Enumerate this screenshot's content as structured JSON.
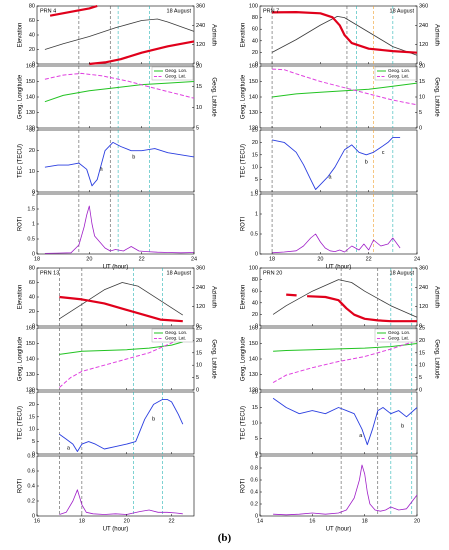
{
  "figure_label": "(b)",
  "colors": {
    "elevation": "#3a3a3a",
    "azimuth": "#e0001b",
    "lon": "#22c322",
    "lat": "#e040e0",
    "tec": "#2b3fe0",
    "roti": "#a020c8",
    "vline_gray": "#555555",
    "vline_cyan": "#2ab5b5",
    "vline_orange": "#f0a030"
  },
  "chart_data": [
    {
      "type": "line",
      "prn": "PRN 4",
      "date": "18 August",
      "x_ticks": [
        18,
        20,
        22,
        24
      ],
      "xlim": [
        18,
        24
      ],
      "xlabel": "UT (hour)",
      "vlines": [
        {
          "x": 19.6,
          "c": "gray"
        },
        {
          "x": 20.8,
          "c": "gray"
        },
        {
          "x": 21.1,
          "c": "cyan"
        },
        {
          "x": 22.3,
          "c": "cyan"
        }
      ],
      "top": {
        "ylabel_left": "Elevation",
        "ylabel_right": "Azimuth",
        "ylim_left": [
          0,
          80
        ],
        "yticks_left": [
          0,
          20,
          40,
          60,
          80
        ],
        "ylim_right": [
          0,
          360
        ],
        "yticks_right": [
          0,
          120,
          240,
          360
        ],
        "elevation": {
          "x": [
            18.3,
            19,
            20,
            21,
            22,
            22.6,
            23,
            24
          ],
          "y": [
            20,
            28,
            38,
            50,
            60,
            62,
            58,
            45
          ]
        },
        "azimuth_segments": [
          {
            "x": [
              18.5,
              19.5,
              20,
              20.3
            ],
            "y": [
              300,
              330,
              345,
              360
            ]
          },
          {
            "x": [
              20,
              20.6,
              21.2,
              22,
              23,
              24
            ],
            "y": [
              0,
              10,
              30,
              70,
              110,
              140
            ]
          }
        ]
      },
      "geo": {
        "ylabel_left": "Geog. Longitude",
        "ylabel_right": "Geog. Latitude",
        "ylim_left": [
          120,
          160
        ],
        "yticks_left": [
          120,
          130,
          140,
          150,
          160
        ],
        "ylim_right": [
          5,
          20
        ],
        "yticks_right": [
          5,
          10,
          15,
          20
        ],
        "legend": [
          "Geog. Lon.",
          "Geog. Lat."
        ],
        "lon": {
          "x": [
            18.3,
            19,
            20,
            21,
            22,
            23,
            24
          ],
          "y": [
            137,
            141,
            144,
            146,
            148,
            149,
            150
          ]
        },
        "lat": {
          "x": [
            18.3,
            19,
            19.7,
            20.5,
            21.5,
            22.5,
            23.5,
            24
          ],
          "y": [
            16.8,
            17.8,
            18.2,
            17.6,
            16.3,
            14.6,
            13,
            12.2
          ]
        }
      },
      "tec": {
        "ylabel": "TEC (TECU)",
        "ylim": [
          0,
          30
        ],
        "yticks": [
          0,
          10,
          20,
          30
        ],
        "x": [
          18.3,
          18.8,
          19.2,
          19.6,
          19.9,
          20.1,
          20.3,
          20.6,
          20.9,
          21.2,
          21.6,
          22.0,
          22.5,
          23.0,
          23.5,
          24.0
        ],
        "y": [
          12,
          13,
          13,
          14,
          11,
          3,
          6,
          20,
          24,
          22,
          20,
          20,
          21,
          19,
          18,
          17
        ],
        "labels": [
          {
            "t": "a",
            "x": 20.45,
            "y": 11
          },
          {
            "t": "b",
            "x": 21.7,
            "y": 17
          }
        ]
      },
      "roti": {
        "ylabel": "ROTI",
        "ylim": [
          0,
          2
        ],
        "yticks": [
          0,
          0.5,
          1,
          1.5,
          2
        ],
        "x": [
          18.3,
          18.8,
          19.3,
          19.6,
          19.8,
          19.9,
          20.0,
          20.1,
          20.2,
          20.4,
          20.6,
          20.8,
          21.0,
          21.3,
          21.6,
          21.9,
          22.2,
          22.6,
          23.0,
          23.5,
          24.0
        ],
        "y": [
          0.02,
          0.03,
          0.04,
          0.3,
          0.9,
          1.3,
          1.6,
          1.0,
          0.6,
          0.4,
          0.2,
          0.1,
          0.15,
          0.1,
          0.25,
          0.1,
          0.08,
          0.06,
          0.05,
          0.04,
          0.05
        ]
      }
    },
    {
      "type": "line",
      "prn": "PRN 7",
      "date": "18 August",
      "x_ticks": [
        18,
        20,
        22,
        24
      ],
      "xlim": [
        17.5,
        24
      ],
      "xlabel": "UT (hour)",
      "vlines": [
        {
          "x": 18.0,
          "c": "gray"
        },
        {
          "x": 21.1,
          "c": "gray"
        },
        {
          "x": 21.5,
          "c": "cyan"
        },
        {
          "x": 22.2,
          "c": "orange"
        },
        {
          "x": 23.0,
          "c": "cyan"
        }
      ],
      "top": {
        "ylabel_left": "Elevation",
        "ylabel_right": "Azimuth",
        "ylim_left": [
          0,
          100
        ],
        "yticks_left": [
          0,
          20,
          40,
          60,
          80,
          100
        ],
        "ylim_right": [
          0,
          360
        ],
        "yticks_right": [
          0,
          120,
          240,
          360
        ],
        "elevation": {
          "x": [
            18,
            19,
            20,
            20.7,
            21,
            22,
            23,
            24
          ],
          "y": [
            20,
            42,
            67,
            82,
            80,
            55,
            30,
            15
          ]
        },
        "azimuth_segments": [
          {
            "x": [
              18,
              19,
              20,
              20.5,
              20.8,
              21,
              21.3,
              22,
              23,
              24
            ],
            "y": [
              320,
              322,
              315,
              290,
              240,
              180,
              130,
              95,
              80,
              70
            ]
          }
        ]
      },
      "geo": {
        "ylabel_left": "Geog. Longitude",
        "ylabel_right": "Geog. Latitude",
        "ylim_left": [
          120,
          160
        ],
        "yticks_left": [
          120,
          130,
          140,
          150,
          160
        ],
        "ylim_right": [
          0,
          20
        ],
        "yticks_right": [
          0,
          5,
          10,
          15,
          20
        ],
        "legend": [
          "Geog. Lon.",
          "Geog. Lat."
        ],
        "lon": {
          "x": [
            18,
            19,
            20,
            21,
            22,
            23,
            24
          ],
          "y": [
            140,
            142,
            143,
            144,
            145,
            147,
            149
          ]
        },
        "lat": {
          "x": [
            18,
            18.5,
            19,
            20,
            21,
            22,
            23,
            24
          ],
          "y": [
            19,
            18.8,
            17.5,
            15,
            13,
            11,
            9,
            7.5
          ]
        }
      },
      "tec": {
        "ylabel": "TEC (TECU)",
        "ylim": [
          0,
          25
        ],
        "yticks": [
          0,
          5,
          10,
          15,
          20,
          25
        ],
        "x": [
          18,
          18.5,
          19,
          19.3,
          19.6,
          19.8,
          20.0,
          20.3,
          20.6,
          21.0,
          21.3,
          21.6,
          21.9,
          22.2,
          22.5,
          22.8,
          23.0,
          23.3
        ],
        "y": [
          21,
          20,
          16,
          11,
          5,
          1,
          3,
          6,
          10,
          17,
          19,
          16,
          15,
          16,
          18,
          20,
          22,
          22
        ],
        "labels": [
          {
            "t": "a",
            "x": 20.4,
            "y": 6
          },
          {
            "t": "b",
            "x": 21.9,
            "y": 12
          },
          {
            "t": "c",
            "x": 22.6,
            "y": 16
          }
        ]
      },
      "roti": {
        "ylabel": "ROTI",
        "ylim": [
          0,
          1.5
        ],
        "yticks": [
          0,
          0.5,
          1,
          1.5
        ],
        "x": [
          18,
          18.5,
          19,
          19.3,
          19.6,
          19.8,
          20.0,
          20.2,
          20.4,
          20.6,
          20.8,
          21.0,
          21.3,
          21.6,
          21.8,
          22.0,
          22.2,
          22.5,
          22.8,
          23.0,
          23.3
        ],
        "y": [
          0.03,
          0.05,
          0.08,
          0.2,
          0.4,
          0.5,
          0.3,
          0.15,
          0.08,
          0.06,
          0.1,
          0.05,
          0.2,
          0.1,
          0.25,
          0.1,
          0.35,
          0.2,
          0.25,
          0.4,
          0.15
        ]
      }
    },
    {
      "type": "line",
      "prn": "PRN 13",
      "date": "18 August",
      "x_ticks": [
        16,
        18,
        20,
        22
      ],
      "xlim": [
        16,
        23
      ],
      "xlabel": "UT (hour)",
      "vlines": [
        {
          "x": 17.0,
          "c": "gray"
        },
        {
          "x": 18.0,
          "c": "gray"
        },
        {
          "x": 20.3,
          "c": "cyan"
        },
        {
          "x": 21.6,
          "c": "cyan"
        }
      ],
      "top": {
        "ylabel_left": "Elevation",
        "ylabel_right": "Azimuth",
        "ylim_left": [
          0,
          80
        ],
        "yticks_left": [
          0,
          20,
          40,
          60,
          80
        ],
        "ylim_right": [
          0,
          360
        ],
        "yticks_right": [
          0,
          120,
          240,
          360
        ],
        "elevation": {
          "x": [
            17,
            18,
            19,
            19.8,
            20.5,
            21.5,
            22.5
          ],
          "y": [
            10,
            30,
            50,
            60,
            55,
            35,
            15
          ]
        },
        "azimuth_segments": [
          {
            "x": [
              17,
              18,
              19,
              20,
              21,
              21.5,
              22.5
            ],
            "y": [
              180,
              165,
              140,
              100,
              60,
              40,
              30
            ]
          }
        ]
      },
      "geo": {
        "ylabel_left": "Geog. Longitude",
        "ylabel_right": "Geog. Latitude",
        "ylim_left": [
          120,
          160
        ],
        "yticks_left": [
          120,
          130,
          140,
          150,
          160
        ],
        "ylim_right": [
          0,
          25
        ],
        "yticks_right": [
          0,
          5,
          10,
          15,
          20,
          25
        ],
        "legend": [
          "Geog. Lon.",
          "Geog. Lat."
        ],
        "lon": {
          "x": [
            17,
            18,
            19,
            20,
            21,
            22,
            22.5
          ],
          "y": [
            143,
            145,
            145.5,
            146,
            147,
            149,
            151
          ]
        },
        "lat": {
          "x": [
            17,
            17.5,
            18,
            19,
            20,
            21,
            22,
            22.5
          ],
          "y": [
            1,
            5,
            7.5,
            10,
            12.5,
            15,
            19,
            22
          ]
        }
      },
      "tec": {
        "ylabel": "TEC (TECU)",
        "ylim": [
          0,
          25
        ],
        "yticks": [
          0,
          5,
          10,
          15,
          20,
          25
        ],
        "x": [
          17,
          17.3,
          17.6,
          17.8,
          18.0,
          18.3,
          18.6,
          19.0,
          19.5,
          20.0,
          20.4,
          20.8,
          21.2,
          21.6,
          21.8,
          22.0,
          22.3,
          22.5
        ],
        "y": [
          8,
          6,
          4,
          1,
          4,
          5,
          4,
          2,
          3,
          4,
          5,
          14,
          20,
          22,
          22,
          21,
          16,
          12
        ],
        "labels": [
          {
            "t": "a",
            "x": 17.4,
            "y": 2.5
          },
          {
            "t": "b",
            "x": 21.2,
            "y": 14
          }
        ]
      },
      "roti": {
        "ylabel": "ROTI",
        "ylim": [
          0,
          0.8
        ],
        "yticks": [
          0,
          0.2,
          0.4,
          0.6,
          0.8
        ],
        "x": [
          17,
          17.3,
          17.6,
          17.8,
          18.0,
          18.2,
          18.5,
          19.0,
          19.5,
          20.0,
          20.3,
          20.6,
          21.0,
          21.4,
          21.8,
          22.2,
          22.5
        ],
        "y": [
          0.02,
          0.05,
          0.2,
          0.35,
          0.15,
          0.05,
          0.03,
          0.02,
          0.03,
          0.02,
          0.04,
          0.06,
          0.08,
          0.05,
          0.05,
          0.04,
          0.03
        ]
      }
    },
    {
      "type": "line",
      "prn": "PRN 20",
      "date": "18 August",
      "x_ticks": [
        14,
        16,
        18,
        20
      ],
      "xlim": [
        14,
        20
      ],
      "xlabel": "UT (hour)",
      "vlines": [
        {
          "x": 17.1,
          "c": "gray"
        },
        {
          "x": 18.5,
          "c": "gray"
        },
        {
          "x": 19.0,
          "c": "cyan"
        },
        {
          "x": 19.8,
          "c": "cyan"
        }
      ],
      "top": {
        "ylabel_left": "Elevation",
        "ylabel_right": "Azimuth",
        "ylim_left": [
          0,
          100
        ],
        "yticks_left": [
          0,
          20,
          40,
          60,
          80,
          100
        ],
        "ylim_right": [
          0,
          360
        ],
        "yticks_right": [
          0,
          120,
          240,
          360
        ],
        "elevation": {
          "x": [
            14.5,
            15,
            16,
            17,
            17.5,
            18,
            19,
            20
          ],
          "y": [
            20,
            35,
            60,
            80,
            75,
            60,
            35,
            15
          ]
        },
        "azimuth_segments": [
          {
            "x": [
              15,
              15.4
            ],
            "y": [
              195,
              190
            ]
          },
          {
            "x": [
              15.8,
              16.5,
              17,
              17.3,
              17.6,
              18,
              18.5,
              19,
              20
            ],
            "y": [
              185,
              180,
              160,
              110,
              70,
              45,
              35,
              30,
              30
            ]
          }
        ]
      },
      "geo": {
        "ylabel_left": "Geog. Longitude",
        "ylabel_right": "Geog. Latitude",
        "ylim_left": [
          120,
          160
        ],
        "yticks_left": [
          120,
          130,
          140,
          150,
          160
        ],
        "ylim_right": [
          0,
          25
        ],
        "yticks_right": [
          0,
          5,
          10,
          15,
          20,
          25
        ],
        "legend": [
          "Geog. Lon.",
          "Geog. Lat."
        ],
        "lon": {
          "x": [
            14.5,
            15,
            16,
            17,
            18,
            19,
            20
          ],
          "y": [
            145,
            145.5,
            146,
            146.5,
            147,
            148,
            150
          ]
        },
        "lat": {
          "x": [
            14.5,
            15,
            16,
            17,
            18,
            19,
            20
          ],
          "y": [
            3,
            6,
            9,
            11.5,
            13.5,
            16.5,
            20
          ]
        }
      },
      "tec": {
        "ylabel": "TEC (TECU)",
        "ylim": [
          0,
          20
        ],
        "yticks": [
          0,
          5,
          10,
          15,
          20
        ],
        "x": [
          14.5,
          15,
          15.5,
          16,
          16.5,
          17,
          17.3,
          17.6,
          17.9,
          18.1,
          18.3,
          18.5,
          18.7,
          19.0,
          19.3,
          19.6,
          20
        ],
        "y": [
          18,
          15,
          13,
          14,
          13,
          15,
          14,
          13,
          8,
          3,
          8,
          14,
          15,
          13,
          14,
          12,
          15
        ],
        "labels": [
          {
            "t": "a",
            "x": 17.85,
            "y": 6
          },
          {
            "t": "b",
            "x": 19.45,
            "y": 9
          }
        ]
      },
      "roti": {
        "ylabel": "ROTI",
        "ylim": [
          0,
          1
        ],
        "yticks": [
          0,
          0.2,
          0.4,
          0.6,
          0.8,
          1
        ],
        "x": [
          14.5,
          15,
          15.5,
          16,
          16.5,
          17,
          17.3,
          17.6,
          17.8,
          17.9,
          18.0,
          18.1,
          18.2,
          18.4,
          18.6,
          18.8,
          19.0,
          19.3,
          19.6,
          20
        ],
        "y": [
          0.03,
          0.02,
          0.03,
          0.05,
          0.03,
          0.05,
          0.1,
          0.3,
          0.6,
          0.85,
          0.7,
          0.4,
          0.2,
          0.1,
          0.08,
          0.1,
          0.15,
          0.1,
          0.12,
          0.35
        ]
      }
    }
  ]
}
